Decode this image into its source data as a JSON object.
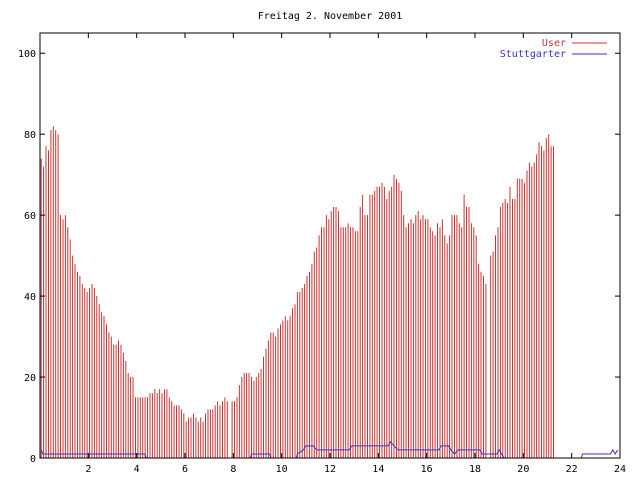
{
  "chart_data": {
    "type": "bar",
    "title": "Freitag 2. November 2001",
    "xlabel": "",
    "ylabel": "",
    "xlim": [
      0,
      24
    ],
    "ylim": [
      0,
      105
    ],
    "xticks": [
      "2",
      "4",
      "6",
      "8",
      "10",
      "12",
      "14",
      "16",
      "18",
      "20",
      "22",
      "24"
    ],
    "xtick_values": [
      2,
      4,
      6,
      8,
      10,
      12,
      14,
      16,
      18,
      20,
      22,
      24
    ],
    "yticks": [
      "0",
      "20",
      "40",
      "60",
      "80",
      "100"
    ],
    "ytick_values": [
      0,
      20,
      40,
      60,
      80,
      100
    ],
    "grid": false,
    "legend_position": "top-right",
    "interval_hours": 0.1,
    "series": [
      {
        "name": "User",
        "style": "impulses",
        "color": "#cc3333",
        "values": [
          74,
          72,
          77,
          76,
          81,
          82,
          81,
          80,
          60,
          59,
          60,
          57,
          54,
          50,
          48,
          46,
          45,
          43,
          42,
          41,
          42,
          43,
          42,
          40,
          38,
          36,
          35,
          33,
          31,
          30,
          28,
          28,
          29,
          28,
          26,
          24,
          21,
          20,
          20,
          15,
          15,
          15,
          15,
          15,
          15,
          16,
          16,
          17,
          16,
          17,
          16,
          17,
          17,
          15,
          14,
          13,
          13,
          13,
          12,
          11,
          9,
          10,
          10,
          11,
          10,
          9,
          10,
          9,
          11,
          12,
          12,
          12,
          13,
          14,
          13,
          14,
          15,
          14,
          0,
          14,
          14,
          15,
          18,
          20,
          21,
          21,
          21,
          20,
          19,
          20,
          21,
          22,
          25,
          27,
          29,
          31,
          31,
          30,
          32,
          33,
          34,
          35,
          34,
          35,
          37,
          38,
          41,
          41,
          42,
          43,
          45,
          46,
          48,
          51,
          52,
          55,
          57,
          57,
          60,
          59,
          61,
          62,
          62,
          61,
          57,
          57,
          57,
          58,
          57,
          57,
          56,
          56,
          62,
          65,
          60,
          60,
          65,
          65,
          66,
          67,
          67,
          68,
          67,
          64,
          66,
          67,
          70,
          69,
          68,
          66,
          60,
          57,
          58,
          59,
          58,
          60,
          61,
          59,
          60,
          59,
          59,
          57,
          56,
          55,
          58,
          57,
          59,
          55,
          53,
          55,
          60,
          60,
          60,
          58,
          57,
          65,
          62,
          62,
          58,
          57,
          55,
          48,
          46,
          45,
          43,
          0,
          50,
          51,
          55,
          57,
          62,
          63,
          64,
          63,
          67,
          64,
          64,
          69,
          69,
          69,
          68,
          71,
          73,
          72,
          73,
          75,
          78,
          77,
          76,
          79,
          80,
          77,
          77
        ]
      },
      {
        "name": "Stuttgarter",
        "style": "lines",
        "color": "#3333cc",
        "values": [
          2,
          2,
          1,
          1,
          1,
          1,
          1,
          1,
          1,
          1,
          1,
          1,
          1,
          1,
          1,
          1,
          1,
          1,
          1,
          1,
          1,
          1,
          1,
          1,
          1,
          1,
          1,
          1,
          1,
          1,
          1,
          1,
          1,
          1,
          1,
          1,
          1,
          1,
          1,
          1,
          1,
          1,
          1,
          1,
          1,
          1,
          1,
          1,
          1,
          1,
          1,
          1,
          1,
          1,
          1,
          1,
          1,
          1,
          1,
          1,
          1,
          1,
          1,
          1,
          1,
          1,
          1,
          1,
          1,
          1,
          1,
          1,
          1,
          1,
          1,
          1,
          1,
          1,
          1,
          1,
          1,
          1,
          1,
          1,
          1,
          1,
          1,
          1,
          1,
          1,
          1,
          1,
          1,
          1,
          1,
          1,
          1,
          1,
          1,
          1,
          1,
          1,
          1,
          1,
          1,
          1,
          1,
          1,
          1,
          1,
          1,
          1,
          1,
          1,
          1,
          1,
          1,
          1,
          1,
          1,
          1,
          1,
          1,
          1,
          1,
          1,
          1,
          1,
          1,
          1,
          1,
          1,
          1,
          1,
          1,
          1,
          1,
          1,
          1,
          1,
          1,
          1,
          1,
          1,
          1,
          1,
          1,
          1,
          1,
          1,
          1,
          1,
          1,
          1,
          1,
          1,
          1,
          1,
          1,
          1,
          1,
          1,
          1,
          1,
          1,
          1,
          1,
          1,
          1,
          1,
          1,
          1,
          1,
          1,
          1,
          1,
          1,
          1,
          1,
          1,
          1,
          1,
          1,
          1,
          1,
          1,
          1,
          1,
          1,
          1,
          1,
          1,
          1,
          1,
          1,
          1,
          1,
          1,
          1,
          1,
          1,
          1,
          1,
          1,
          1,
          1,
          1,
          1,
          1,
          1,
          1,
          1,
          1,
          1,
          1,
          1,
          1,
          1,
          1,
          1,
          1,
          1,
          1,
          1,
          1,
          1,
          1,
          1,
          1,
          1,
          1,
          1,
          1,
          1,
          1,
          1,
          1,
          1,
          2,
          1,
          1,
          1,
          1,
          1,
          1,
          1,
          1,
          1,
          1,
          1,
          1,
          1,
          1,
          1,
          1,
          1,
          1,
          1,
          1,
          1,
          1,
          1,
          1,
          1,
          1,
          2,
          2,
          1,
          1,
          1,
          1,
          1,
          1
        ]
      }
    ],
    "series_line_points": [
      [
        0.05,
        2
      ],
      [
        0.12,
        1
      ],
      [
        1.0,
        1
      ],
      [
        1.05,
        1
      ],
      [
        4.35,
        1
      ],
      [
        4.4,
        0
      ],
      [
        8.7,
        0
      ],
      [
        8.75,
        1
      ],
      [
        9.0,
        1
      ],
      [
        9.5,
        1
      ],
      [
        9.55,
        0
      ],
      [
        10.6,
        0
      ],
      [
        10.65,
        1
      ],
      [
        10.9,
        2
      ],
      [
        11.0,
        3
      ],
      [
        11.3,
        3
      ],
      [
        11.45,
        2
      ],
      [
        12.8,
        2
      ],
      [
        12.9,
        3
      ],
      [
        14.4,
        3
      ],
      [
        14.5,
        4
      ],
      [
        14.65,
        3
      ],
      [
        14.8,
        2
      ],
      [
        15.4,
        2
      ],
      [
        16.5,
        2
      ],
      [
        16.6,
        3
      ],
      [
        16.9,
        3
      ],
      [
        17.0,
        2
      ],
      [
        17.15,
        1
      ],
      [
        17.3,
        2
      ],
      [
        18.2,
        2
      ],
      [
        18.3,
        1
      ],
      [
        18.9,
        1
      ],
      [
        19.0,
        2
      ],
      [
        19.1,
        1
      ],
      [
        19.2,
        0
      ],
      [
        22.4,
        0
      ],
      [
        22.45,
        1
      ],
      [
        23.6,
        1
      ],
      [
        23.7,
        2
      ],
      [
        23.8,
        1
      ],
      [
        23.9,
        2
      ]
    ]
  }
}
